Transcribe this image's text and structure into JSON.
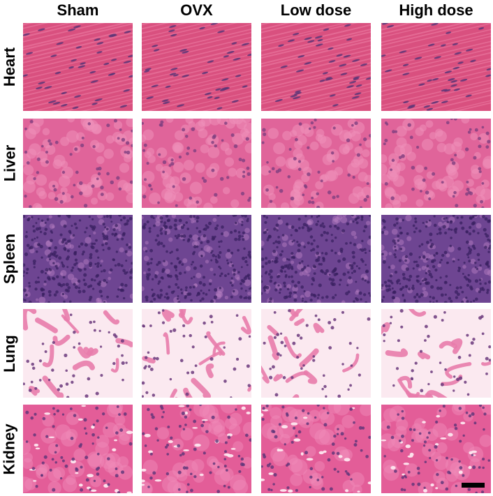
{
  "columns": [
    "Sham",
    "OVX",
    "Low dose",
    "High dose"
  ],
  "rows": [
    {
      "label": "Heart",
      "tissue": "heart-muscle",
      "colors": {
        "bg": "#d9507f",
        "fiber": "#e9759e",
        "nucleus": "#5a3577"
      }
    },
    {
      "label": "Liver",
      "tissue": "liver",
      "colors": {
        "bg": "#e0649a",
        "cell": "#ee8fba",
        "nucleus": "#7e3e7f"
      }
    },
    {
      "label": "Spleen",
      "tissue": "spleen",
      "colors": {
        "bg": "#6e4592",
        "cell": "#b47bc0",
        "nucleus": "#3a2060"
      }
    },
    {
      "label": "Lung",
      "tissue": "lung-alveolar",
      "colors": {
        "bg": "#fbe9f0",
        "cell": "#e87cab",
        "nucleus": "#6b3a7d"
      }
    },
    {
      "label": "Kidney",
      "tissue": "kidney-tubules",
      "colors": {
        "bg": "#e35d98",
        "cell": "#f08ab8",
        "nucleus": "#5b3478"
      }
    }
  ],
  "scale_bar": {
    "color": "#000000"
  }
}
